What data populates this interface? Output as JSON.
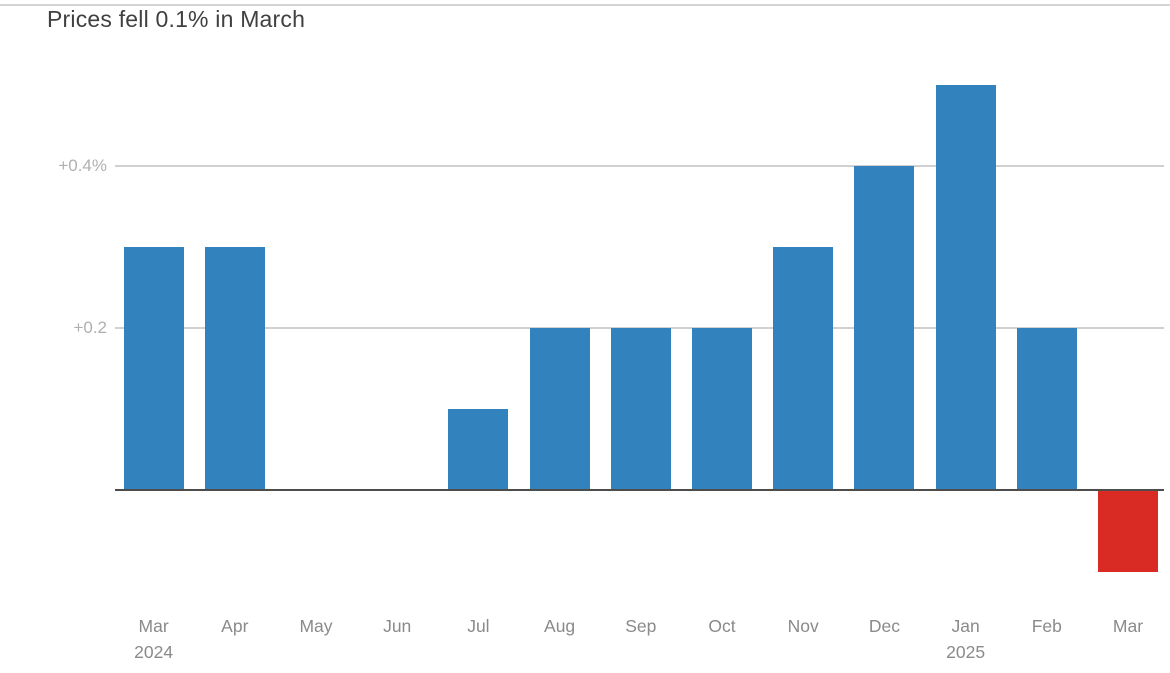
{
  "chart_data": {
    "type": "bar",
    "title": "Prices fell 0.1% in March",
    "categories": [
      "Mar",
      "Apr",
      "May",
      "Jun",
      "Jul",
      "Aug",
      "Sep",
      "Oct",
      "Nov",
      "Dec",
      "Jan",
      "Feb",
      "Mar"
    ],
    "year_labels": [
      {
        "index": 0,
        "label": "2024"
      },
      {
        "index": 10,
        "label": "2025"
      }
    ],
    "values": [
      0.3,
      0.3,
      0,
      0,
      0.1,
      0.2,
      0.2,
      0.2,
      0.3,
      0.4,
      0.5,
      0.2,
      -0.1
    ],
    "unit": "%",
    "y_ticks": [
      {
        "value": 0.4,
        "label": "+0.4%"
      },
      {
        "value": 0.2,
        "label": "+0.2"
      }
    ],
    "ylim": [
      -0.15,
      0.55
    ],
    "xlabel": "",
    "ylabel": "",
    "grid": true,
    "legend": "none",
    "colors": {
      "positive_bar": "#3182bd",
      "negative_bar": "#d92b23",
      "gridline": "#d0d0d0",
      "baseline": "#4d4d4d",
      "title_text": "#404040",
      "ytick_text": "#b0b0b0",
      "xtick_text": "#8a8a8a",
      "top_border": "#d4d4d4"
    }
  }
}
